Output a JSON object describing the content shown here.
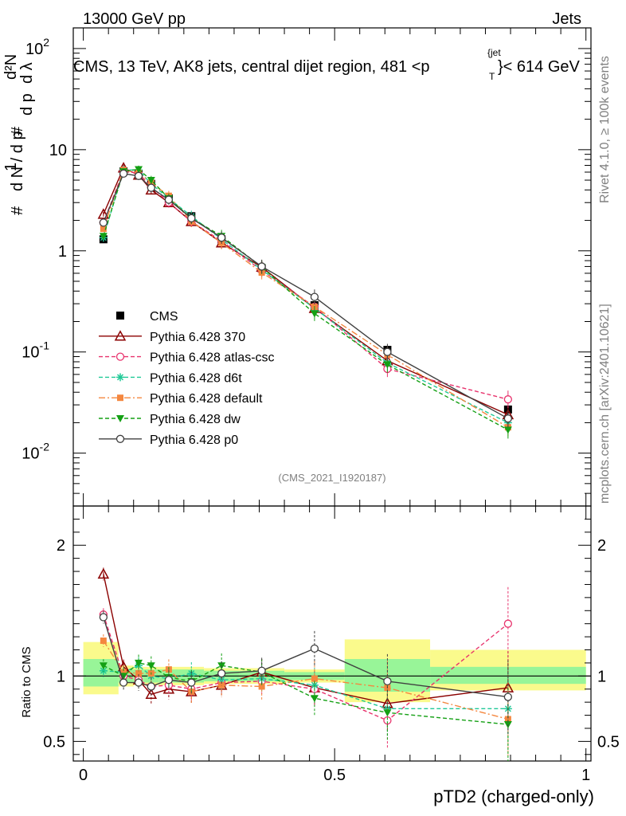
{
  "header": {
    "left": "13000 GeV pp",
    "right": "Jets",
    "title": "CMS, 13 TeV, AK8 jets, central dijet region, 481 <p",
    "title_sub": "T",
    "title_sup": "{jet",
    "title_end": "}< 614 GeV",
    "rivet": "Rivet 4.1.0, ≥ 100k events",
    "mcplots": "mcplots.cern.ch [arXiv:2401.10621]",
    "analysis": "(CMS_2021_I1920187)"
  },
  "colors": {
    "CMS": "#000000",
    "Pythia 6.428 370": "#8b0000",
    "Pythia 6.428 atlas-csc": "#e8336d",
    "Pythia 6.428 d6t": "#20c997",
    "Pythia 6.428 default": "#f4873f",
    "Pythia 6.428 dw": "#14a014",
    "Pythia 6.428 p0": "#404040",
    "band_inner": "#98f598",
    "band_outer": "#fafa8c"
  },
  "chart_data": [
    {
      "type": "line",
      "panel": "main",
      "yscale": "log",
      "ylabel": "1 / dN/dpT · d²N / dpT dλ",
      "ylim": [
        0.003,
        160
      ],
      "xlim": [
        -0.02,
        1.01
      ],
      "y_tick_labels": [
        "10^-2",
        "10^-1",
        "1",
        "10",
        "10^2"
      ],
      "x": [
        0.04,
        0.08,
        0.11,
        0.135,
        0.17,
        0.215,
        0.275,
        0.355,
        0.46,
        0.605,
        0.845
      ],
      "series": [
        {
          "name": "CMS",
          "marker": "filled-square",
          "values": [
            1.3,
            6.1,
            5.8,
            4.6,
            3.3,
            2.2,
            1.3,
            0.67,
            0.29,
            0.105,
            0.027
          ]
        },
        {
          "name": "Pythia 6.428 370",
          "marker": "open-triangle",
          "values": [
            2.3,
            6.6,
            5.6,
            4.0,
            3.0,
            1.95,
            1.2,
            0.69,
            0.27,
            0.082,
            0.024
          ]
        },
        {
          "name": "Pythia 6.428 atlas-csc",
          "marker": "open-circle",
          "values": [
            1.9,
            6.2,
            5.8,
            4.3,
            3.0,
            1.95,
            1.25,
            0.64,
            0.28,
            0.068,
            0.034
          ]
        },
        {
          "name": "Pythia 6.428 d6t",
          "marker": "star",
          "values": [
            1.35,
            6.3,
            6.3,
            4.6,
            3.3,
            2.2,
            1.3,
            0.65,
            0.27,
            0.078,
            0.02
          ]
        },
        {
          "name": "Pythia 6.428 default",
          "marker": "filled-square-small",
          "values": [
            1.65,
            6.3,
            5.9,
            4.7,
            3.5,
            1.95,
            1.2,
            0.61,
            0.28,
            0.094,
            0.018
          ]
        },
        {
          "name": "Pythia 6.428 dw",
          "marker": "filled-triangle-down",
          "values": [
            1.4,
            6.1,
            6.4,
            5.0,
            3.3,
            2.1,
            1.4,
            0.69,
            0.24,
            0.075,
            0.017
          ]
        },
        {
          "name": "Pythia 6.428 p0",
          "marker": "open-circle-dark",
          "values": [
            1.9,
            5.8,
            5.5,
            4.2,
            3.2,
            2.1,
            1.35,
            0.7,
            0.35,
            0.1,
            0.022
          ]
        }
      ]
    },
    {
      "type": "line",
      "panel": "ratio",
      "ylabel": "Ratio to CMS",
      "xlabel": "pTD2 (charged-only)",
      "ylim": [
        0.35,
        2.3
      ],
      "xlim": [
        -0.02,
        1.01
      ],
      "y_ticks": [
        0.5,
        1,
        2
      ],
      "y_tick_labels": [
        "0.5",
        "1",
        "2"
      ],
      "x_ticks": [
        0,
        0.5,
        1
      ],
      "x_tick_labels": [
        "0",
        "0.5",
        "1"
      ],
      "x": [
        0.04,
        0.08,
        0.11,
        0.135,
        0.17,
        0.215,
        0.275,
        0.355,
        0.46,
        0.605,
        0.845
      ],
      "bands": {
        "bin_edges": [
          0,
          0.07,
          0.1,
          0.12,
          0.15,
          0.19,
          0.24,
          0.31,
          0.4,
          0.52,
          0.69,
          1.0
        ],
        "inner": [
          [
            0.92,
            1.13
          ],
          [
            0.95,
            1.05
          ],
          [
            0.95,
            1.05
          ],
          [
            0.95,
            1.05
          ],
          [
            0.95,
            1.05
          ],
          [
            0.95,
            1.05
          ],
          [
            0.96,
            1.04
          ],
          [
            0.96,
            1.04
          ],
          [
            0.97,
            1.03
          ],
          [
            0.88,
            1.13
          ],
          [
            0.94,
            1.07
          ]
        ],
        "outer": [
          [
            0.86,
            1.26
          ],
          [
            0.92,
            1.08
          ],
          [
            0.93,
            1.07
          ],
          [
            0.93,
            1.07
          ],
          [
            0.93,
            1.07
          ],
          [
            0.93,
            1.07
          ],
          [
            0.94,
            1.06
          ],
          [
            0.94,
            1.06
          ],
          [
            0.95,
            1.05
          ],
          [
            0.8,
            1.28
          ],
          [
            0.89,
            1.2
          ]
        ]
      },
      "series": [
        {
          "name": "Pythia 6.428 370",
          "values": [
            1.78,
            1.07,
            0.97,
            0.86,
            0.9,
            0.88,
            0.93,
            1.03,
            0.91,
            0.79,
            0.91
          ]
        },
        {
          "name": "Pythia 6.428 atlas-csc",
          "values": [
            1.47,
            1.0,
            0.97,
            0.92,
            0.93,
            0.9,
            0.95,
            0.96,
            0.9,
            0.66,
            1.4
          ]
        },
        {
          "name": "Pythia 6.428 d6t",
          "values": [
            1.04,
            1.03,
            1.08,
            1.0,
            0.98,
            1.02,
            0.97,
            0.98,
            0.93,
            0.75,
            0.75
          ]
        },
        {
          "name": "Pythia 6.428 default",
          "values": [
            1.27,
            1.03,
            1.02,
            1.02,
            1.05,
            0.88,
            0.93,
            0.92,
            0.98,
            0.91,
            0.67
          ]
        },
        {
          "name": "Pythia 6.428 dw",
          "values": [
            1.08,
            1.0,
            1.1,
            1.08,
            0.99,
            0.96,
            1.08,
            1.03,
            0.83,
            0.72,
            0.63
          ]
        },
        {
          "name": "Pythia 6.428 p0",
          "values": [
            1.45,
            0.95,
            0.95,
            0.92,
            0.97,
            0.95,
            1.02,
            1.04,
            1.21,
            0.96,
            0.84
          ]
        }
      ]
    }
  ]
}
